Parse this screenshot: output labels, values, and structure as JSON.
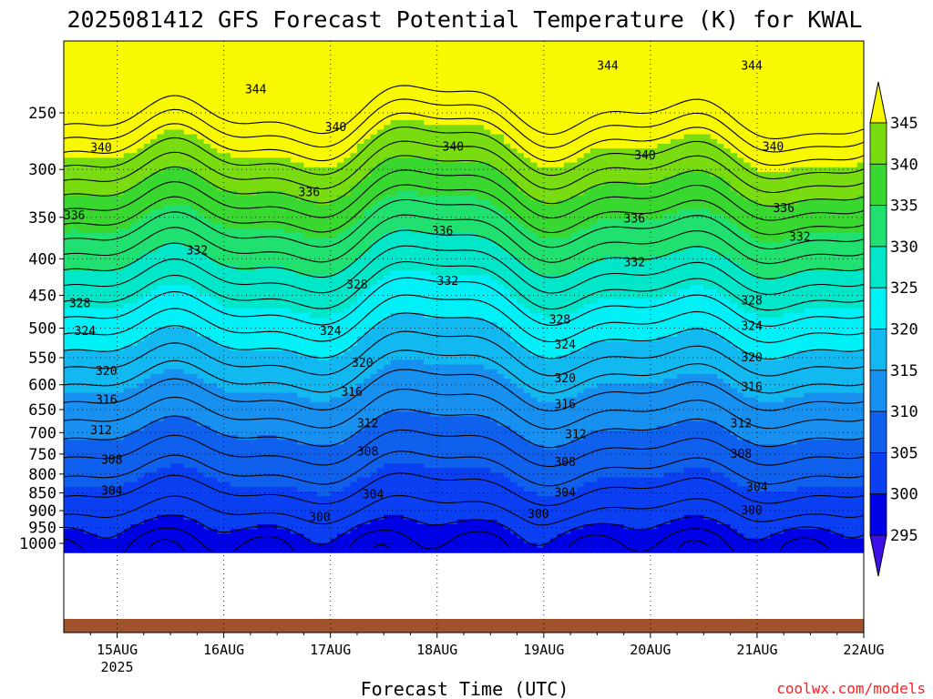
{
  "chart_data": {
    "type": "heatmap",
    "title": "2025081412 GFS Forecast Potential Temperature (K) for KWAL",
    "xlabel": "Forecast Time (UTC)",
    "ylabel": "",
    "credit": "coolwx.com/models",
    "x_ticks": [
      {
        "label": "15AUG",
        "sublabel": "2025",
        "day": 15
      },
      {
        "label": "16AUG",
        "sublabel": "",
        "day": 16
      },
      {
        "label": "17AUG",
        "sublabel": "",
        "day": 17
      },
      {
        "label": "18AUG",
        "sublabel": "",
        "day": 18
      },
      {
        "label": "19AUG",
        "sublabel": "",
        "day": 19
      },
      {
        "label": "20AUG",
        "sublabel": "",
        "day": 20
      },
      {
        "label": "21AUG",
        "sublabel": "",
        "day": 21
      },
      {
        "label": "22AUG",
        "sublabel": "",
        "day": 22
      }
    ],
    "xlim": [
      14.5,
      22.0
    ],
    "y_ticks": [
      250,
      300,
      350,
      400,
      450,
      500,
      550,
      600,
      650,
      700,
      750,
      800,
      850,
      900,
      950,
      1000
    ],
    "ylim": [
      1020,
      200
    ],
    "y_scale": "log (pressure, hPa)",
    "grid": true,
    "colorbar": {
      "levels": [
        295,
        300,
        305,
        310,
        315,
        320,
        325,
        330,
        335,
        340,
        345
      ],
      "colors": [
        "#3d10e8",
        "#0000e6",
        "#0a3ff2",
        "#1060ee",
        "#1790f0",
        "#12b8f0",
        "#00f0f8",
        "#00e6c8",
        "#20e070",
        "#38d830",
        "#78dc10",
        "#c0ef00",
        "#f8f800"
      ]
    },
    "contour_interval": 2,
    "contour_labels": [
      {
        "text": "344",
        "day": 16.3,
        "p": 232
      },
      {
        "text": "344",
        "day": 19.6,
        "p": 215
      },
      {
        "text": "344",
        "day": 20.95,
        "p": 215
      },
      {
        "text": "340",
        "day": 14.85,
        "p": 280
      },
      {
        "text": "340",
        "day": 17.05,
        "p": 262
      },
      {
        "text": "340",
        "day": 18.15,
        "p": 279
      },
      {
        "text": "340",
        "day": 19.95,
        "p": 287
      },
      {
        "text": "340",
        "day": 21.15,
        "p": 279
      },
      {
        "text": "336",
        "day": 14.6,
        "p": 348
      },
      {
        "text": "336",
        "day": 16.8,
        "p": 323
      },
      {
        "text": "336",
        "day": 18.05,
        "p": 366
      },
      {
        "text": "336",
        "day": 19.85,
        "p": 352
      },
      {
        "text": "336",
        "day": 21.25,
        "p": 340
      },
      {
        "text": "332",
        "day": 15.75,
        "p": 390
      },
      {
        "text": "332",
        "day": 18.1,
        "p": 430
      },
      {
        "text": "332",
        "day": 19.85,
        "p": 405
      },
      {
        "text": "332",
        "day": 21.4,
        "p": 373
      },
      {
        "text": "328",
        "day": 14.65,
        "p": 462
      },
      {
        "text": "328",
        "day": 17.25,
        "p": 435
      },
      {
        "text": "328",
        "day": 19.15,
        "p": 487
      },
      {
        "text": "328",
        "day": 20.95,
        "p": 458
      },
      {
        "text": "324",
        "day": 14.7,
        "p": 505
      },
      {
        "text": "324",
        "day": 17.0,
        "p": 505
      },
      {
        "text": "324",
        "day": 19.2,
        "p": 528
      },
      {
        "text": "324",
        "day": 20.95,
        "p": 497
      },
      {
        "text": "320",
        "day": 14.9,
        "p": 575
      },
      {
        "text": "320",
        "day": 17.3,
        "p": 560
      },
      {
        "text": "320",
        "day": 19.2,
        "p": 588
      },
      {
        "text": "320",
        "day": 20.95,
        "p": 550
      },
      {
        "text": "316",
        "day": 14.9,
        "p": 630
      },
      {
        "text": "316",
        "day": 17.2,
        "p": 615
      },
      {
        "text": "316",
        "day": 19.2,
        "p": 640
      },
      {
        "text": "316",
        "day": 20.95,
        "p": 605
      },
      {
        "text": "312",
        "day": 14.85,
        "p": 695
      },
      {
        "text": "312",
        "day": 17.35,
        "p": 680
      },
      {
        "text": "312",
        "day": 19.3,
        "p": 705
      },
      {
        "text": "312",
        "day": 20.85,
        "p": 680
      },
      {
        "text": "308",
        "day": 14.95,
        "p": 765
      },
      {
        "text": "308",
        "day": 17.35,
        "p": 745
      },
      {
        "text": "308",
        "day": 19.2,
        "p": 770
      },
      {
        "text": "308",
        "day": 20.85,
        "p": 750
      },
      {
        "text": "304",
        "day": 14.95,
        "p": 845
      },
      {
        "text": "304",
        "day": 17.4,
        "p": 855
      },
      {
        "text": "304",
        "day": 19.2,
        "p": 850
      },
      {
        "text": "304",
        "day": 21.0,
        "p": 835
      },
      {
        "text": "300",
        "day": 16.9,
        "p": 920
      },
      {
        "text": "300",
        "day": 18.95,
        "p": 910
      },
      {
        "text": "300",
        "day": 20.95,
        "p": 900
      }
    ]
  }
}
